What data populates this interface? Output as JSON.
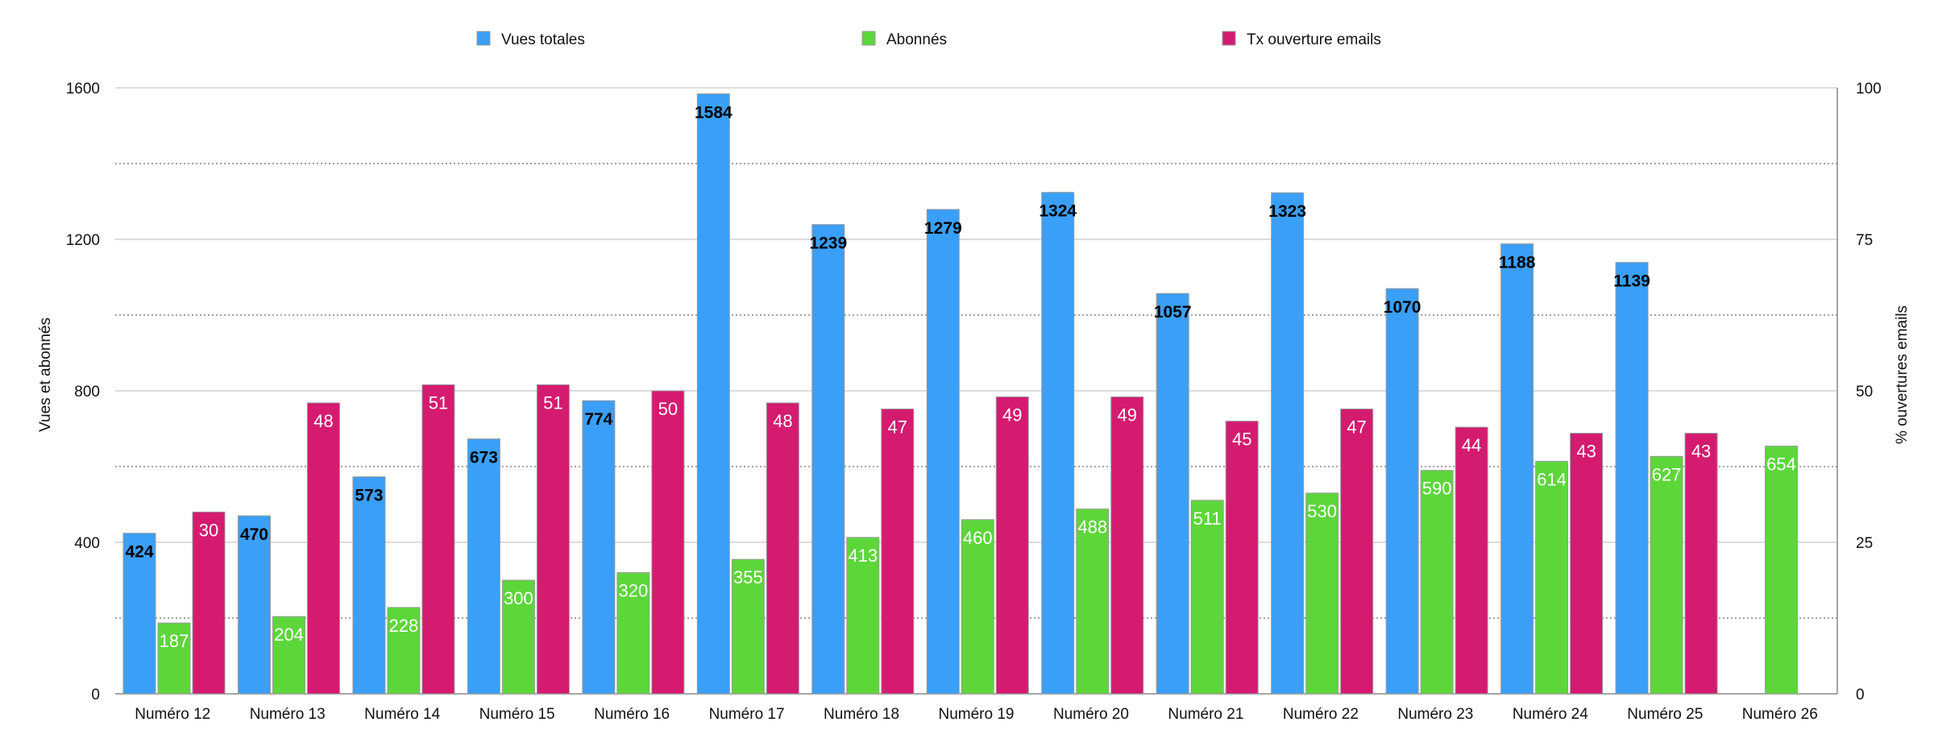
{
  "chart_data": {
    "type": "bar",
    "categories": [
      "Numéro 12",
      "Numéro 13",
      "Numéro 14",
      "Numéro 15",
      "Numéro 16",
      "Numéro 17",
      "Numéro 18",
      "Numéro 19",
      "Numéro 20",
      "Numéro 21",
      "Numéro 22",
      "Numéro 23",
      "Numéro 24",
      "Numéro 25",
      "Numéro 26"
    ],
    "series": [
      {
        "name": "Vues totales",
        "axis": "left",
        "color": "#3a9ff7",
        "label_style": "dark",
        "values": [
          424,
          470,
          573,
          673,
          774,
          1584,
          1239,
          1279,
          1324,
          1057,
          1323,
          1070,
          1188,
          1139,
          null
        ]
      },
      {
        "name": "Abonnés",
        "axis": "left",
        "color": "#5dd63a",
        "label_style": "light",
        "values": [
          187,
          204,
          228,
          300,
          320,
          355,
          413,
          460,
          488,
          511,
          530,
          590,
          614,
          627,
          654
        ]
      },
      {
        "name": "Tx ouverture emails",
        "axis": "right",
        "color": "#d41b70",
        "label_style": "light",
        "values": [
          30,
          48,
          51,
          51,
          50,
          48,
          47,
          49,
          49,
          45,
          47,
          44,
          43,
          43,
          null
        ]
      }
    ],
    "y_left": {
      "label": "Vues et abonnés",
      "ylim": [
        0,
        1600
      ],
      "ticks": [
        "0",
        "400",
        "800",
        "1200",
        "1600"
      ]
    },
    "y_right": {
      "label": "% ouvertures emails",
      "ylim": [
        0,
        100
      ],
      "ticks": [
        "0",
        "25",
        "50",
        "75",
        "100"
      ]
    },
    "grid": true,
    "legend_position": "top"
  }
}
